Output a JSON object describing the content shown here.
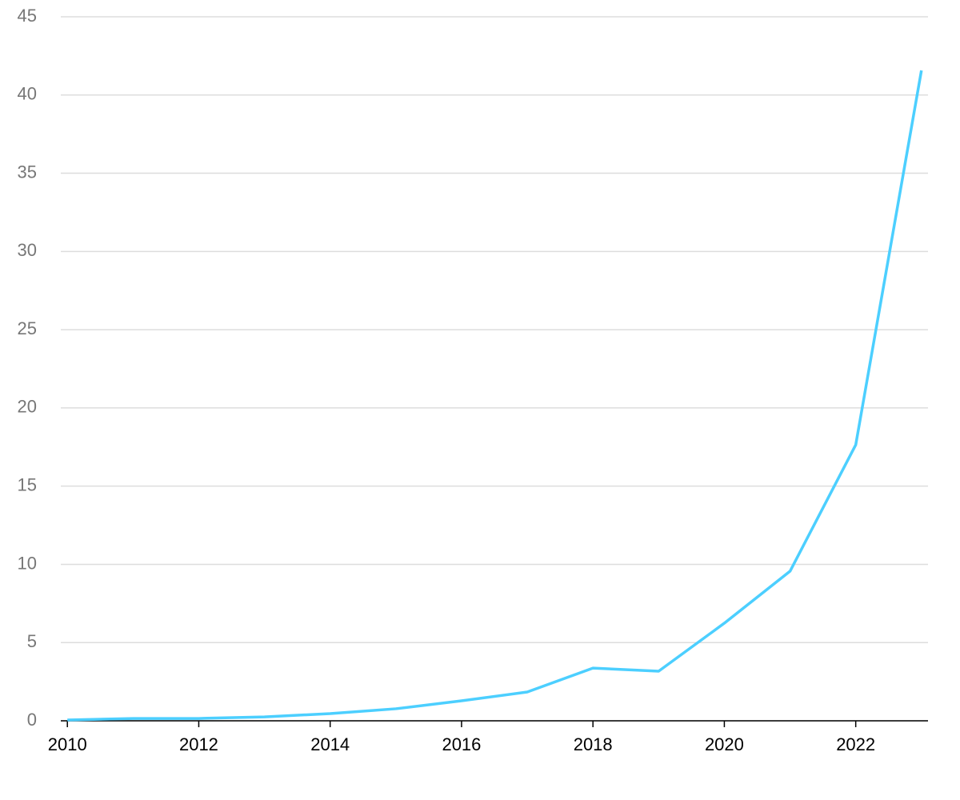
{
  "chart_data": {
    "type": "line",
    "x": [
      2010,
      2011,
      2012,
      2013,
      2014,
      2015,
      2016,
      2017,
      2018,
      2019,
      2020,
      2021,
      2022,
      2023
    ],
    "series": [
      {
        "color": "#4ccfff",
        "values": [
          0.05,
          0.15,
          0.15,
          0.25,
          0.46,
          0.77,
          1.28,
          1.84,
          3.37,
          3.17,
          6.24,
          9.56,
          17.64,
          41.57
        ]
      }
    ],
    "xlim": [
      2009.9,
      2023.1
    ],
    "xticks": [
      2010,
      2012,
      2014,
      2016,
      2018,
      2020,
      2022
    ],
    "ylim": [
      0,
      45
    ],
    "yticks": [
      0,
      5,
      10,
      15,
      20,
      25,
      30,
      35,
      40,
      45
    ],
    "grid": true
  }
}
